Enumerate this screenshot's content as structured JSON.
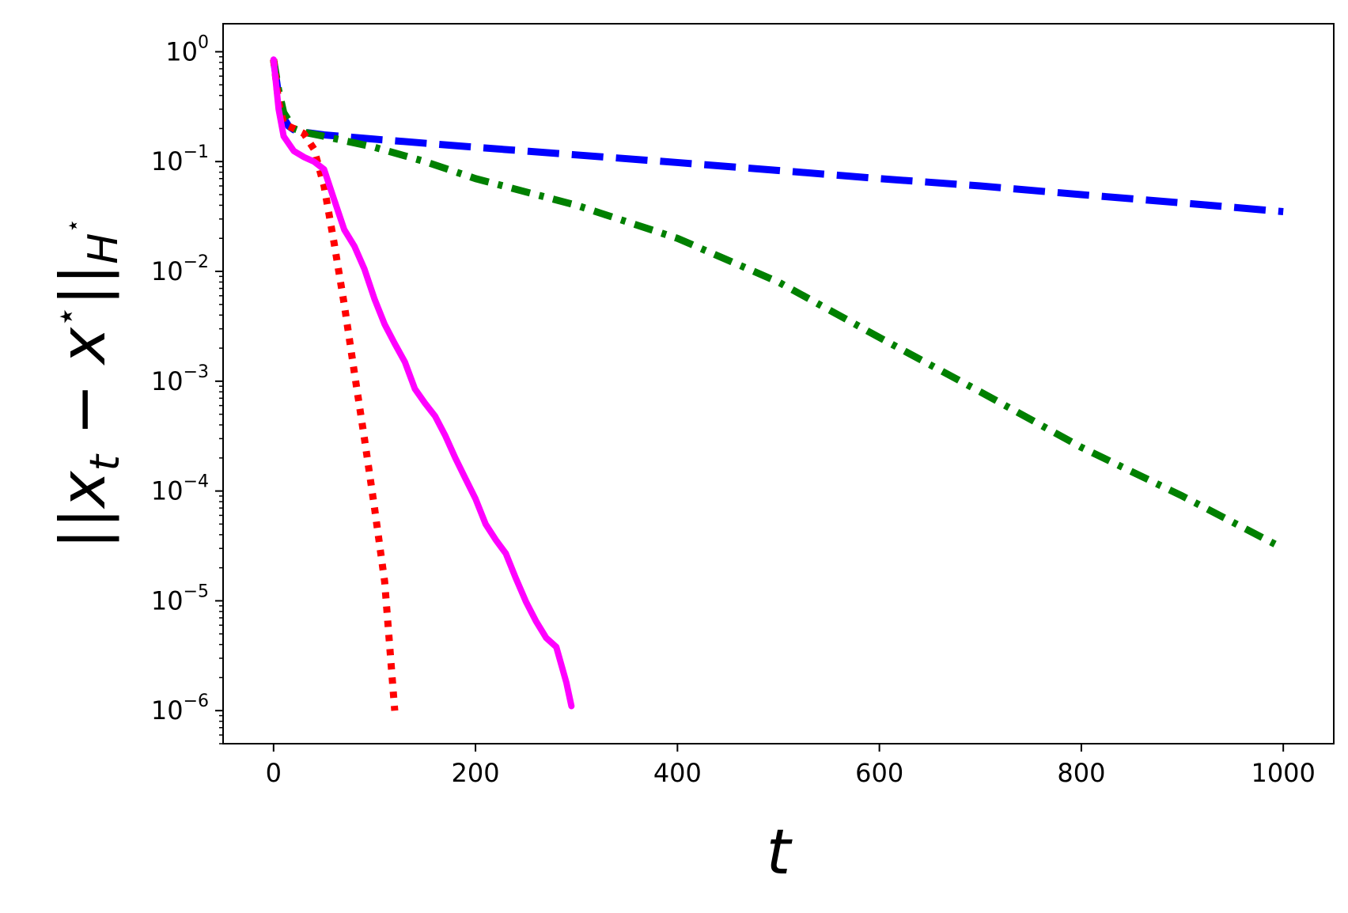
{
  "chart_data": {
    "type": "line",
    "title": "",
    "xlabel": "t",
    "ylabel_parts": {
      "norm_open": "||",
      "var": "x",
      "sub": "t",
      "minus": " − ",
      "var2": "x",
      "star": "⋆",
      "norm_close": "||",
      "sub2": "H",
      "star2": "⋆"
    },
    "x_range": [
      -50,
      1050
    ],
    "y_range": [
      5e-07,
      1.8
    ],
    "y_scale": "log",
    "grid": false,
    "legend": "none",
    "x_ticks": [
      {
        "value": 0,
        "label": "0"
      },
      {
        "value": 200,
        "label": "200"
      },
      {
        "value": 400,
        "label": "400"
      },
      {
        "value": 600,
        "label": "600"
      },
      {
        "value": 800,
        "label": "800"
      },
      {
        "value": 1000,
        "label": "1000"
      }
    ],
    "y_ticks": [
      {
        "value": 1,
        "base": "10",
        "exp": "0"
      },
      {
        "value": 0.1,
        "base": "10",
        "exp": "−1"
      },
      {
        "value": 0.01,
        "base": "10",
        "exp": "−2"
      },
      {
        "value": 0.001,
        "base": "10",
        "exp": "−3"
      },
      {
        "value": 0.0001,
        "base": "10",
        "exp": "−4"
      },
      {
        "value": 1e-05,
        "base": "10",
        "exp": "−5"
      },
      {
        "value": 1e-06,
        "base": "10",
        "exp": "−6"
      }
    ],
    "series": [
      {
        "color": "#0000ff",
        "style": "dashed",
        "x": [
          0,
          5,
          10,
          15,
          20,
          30,
          50,
          100,
          200,
          300,
          400,
          500,
          600,
          700,
          800,
          900,
          1000
        ],
        "y": [
          0.85,
          0.4,
          0.25,
          0.21,
          0.195,
          0.185,
          0.175,
          0.16,
          0.135,
          0.115,
          0.098,
          0.083,
          0.07,
          0.06,
          0.05,
          0.042,
          0.035
        ]
      },
      {
        "color": "#008000",
        "style": "dashdot",
        "x": [
          0,
          5,
          10,
          20,
          30,
          50,
          100,
          150,
          200,
          300,
          400,
          500,
          600,
          700,
          800,
          900,
          1000
        ],
        "y": [
          0.85,
          0.45,
          0.28,
          0.2,
          0.185,
          0.17,
          0.135,
          0.1,
          0.07,
          0.04,
          0.02,
          0.008,
          0.0025,
          0.0008,
          0.00025,
          9e-05,
          3e-05
        ]
      },
      {
        "color": "#ff0000",
        "style": "dotted",
        "x": [
          0,
          5,
          10,
          20,
          30,
          40,
          50,
          60,
          70,
          80,
          90,
          100,
          110,
          120
        ],
        "y": [
          0.85,
          0.35,
          0.22,
          0.2,
          0.18,
          0.13,
          0.06,
          0.018,
          0.005,
          0.0012,
          0.0003,
          7e-05,
          1.5e-05,
          1e-06
        ]
      },
      {
        "color": "#ff00ff",
        "style": "solid",
        "x": [
          0,
          5,
          10,
          20,
          30,
          40,
          50,
          60,
          70,
          80,
          90,
          100,
          110,
          120,
          130,
          140,
          150,
          160,
          170,
          180,
          190,
          200,
          210,
          220,
          230,
          240,
          250,
          260,
          270,
          280,
          290,
          295
        ],
        "y": [
          0.85,
          0.3,
          0.17,
          0.125,
          0.11,
          0.1,
          0.085,
          0.045,
          0.024,
          0.017,
          0.0105,
          0.0056,
          0.0033,
          0.0022,
          0.0015,
          0.00085,
          0.00063,
          0.00048,
          0.00032,
          0.0002,
          0.00013,
          8.5e-05,
          5e-05,
          3.6e-05,
          2.7e-05,
          1.6e-05,
          9.8e-06,
          6.5e-06,
          4.6e-06,
          3.8e-06,
          1.8e-06,
          1.1e-06
        ]
      }
    ]
  }
}
